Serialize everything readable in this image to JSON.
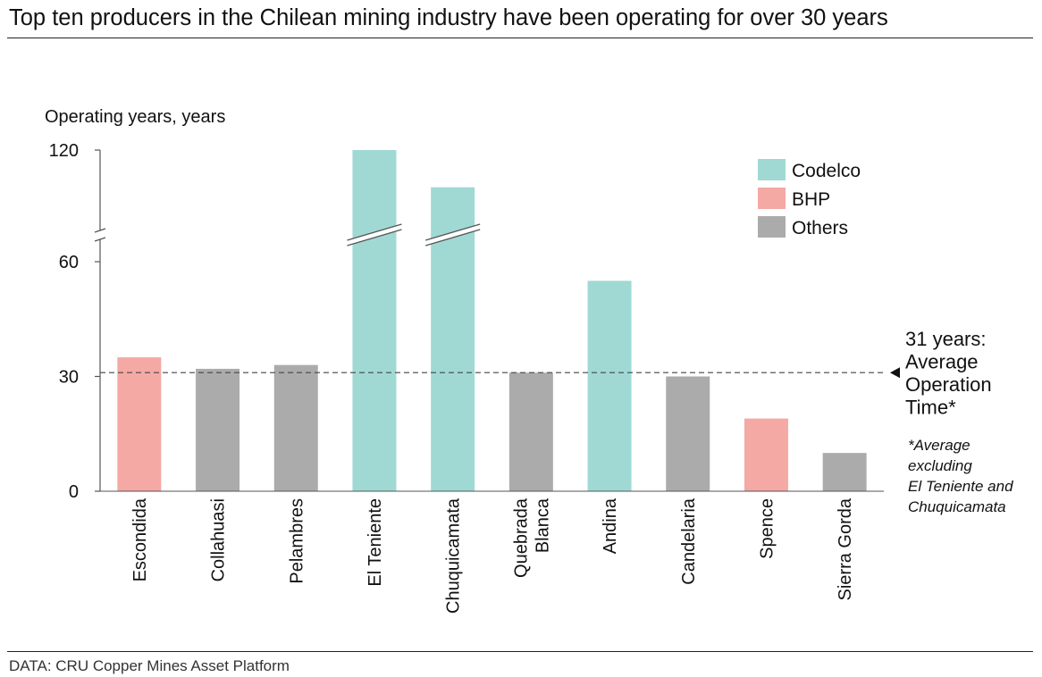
{
  "title": "Top ten producers in the Chilean mining industry have been operating for over 30 years",
  "source": "DATA: CRU Copper Mines Asset Platform",
  "colors": {
    "Codelco": "#a0d9d4",
    "BHP": "#f4a9a4",
    "Others": "#ababab"
  },
  "chart_data": {
    "type": "bar",
    "ylabel": "Operating years, years",
    "yticks": [
      0,
      30,
      60,
      120
    ],
    "ylim": [
      0,
      120
    ],
    "axis_break": "between 60 and 120",
    "legend_placement": "top-right",
    "legend": [
      "Codelco",
      "BHP",
      "Others"
    ],
    "categories": [
      "Escondida",
      "Collahuasi",
      "Pelambres",
      "El Teniente",
      "Chuquicamata",
      "Quebrada Blanca",
      "Andina",
      "Candelaria",
      "Spence",
      "Sierra Gorda"
    ],
    "category_lines": [
      [
        "Escondida"
      ],
      [
        "Collahuasi"
      ],
      [
        "Pelambres"
      ],
      [
        "El Teniente"
      ],
      [
        "Chuquicamata"
      ],
      [
        "Quebrada",
        "Blanca"
      ],
      [
        "Andina"
      ],
      [
        "Candelaria"
      ],
      [
        "Spence"
      ],
      [
        "Sierra Gorda"
      ]
    ],
    "values": [
      35,
      32,
      33,
      120,
      100,
      31,
      55,
      30,
      19,
      10
    ],
    "groups": [
      "BHP",
      "Others",
      "Others",
      "Codelco",
      "Codelco",
      "Others",
      "Codelco",
      "Others",
      "BHP",
      "Others"
    ],
    "broken_bars": [
      "El Teniente",
      "Chuquicamata"
    ],
    "reference_line": {
      "value": 31,
      "label_lines": [
        "31 years:",
        "Average",
        "Operation",
        "Time*"
      ]
    },
    "footnote_lines": [
      "*Average",
      "excluding",
      "El Teniente and",
      "Chuquicamata"
    ]
  }
}
